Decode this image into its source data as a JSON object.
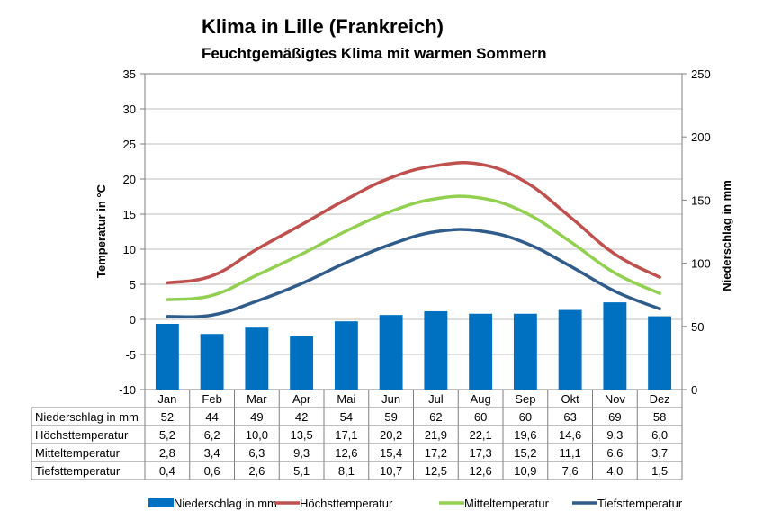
{
  "title": "Klima in Lille (Frankreich)",
  "subtitle": "Feuchtgemäßigtes Klima mit warmen Sommern",
  "chart_data": {
    "type": "bar",
    "categories": [
      "Jan",
      "Feb",
      "Mar",
      "Apr",
      "Mai",
      "Jun",
      "Jul",
      "Aug",
      "Sep",
      "Okt",
      "Nov",
      "Dez"
    ],
    "ylabel_left": "Temperatur in °C",
    "ylabel_right": "Niederschlag in mm",
    "ylim_left": [
      -10,
      35
    ],
    "yticks_left": [
      35,
      30,
      25,
      20,
      15,
      10,
      5,
      0,
      -5,
      -10
    ],
    "ylim_right": [
      0,
      250
    ],
    "yticks_right": [
      250,
      200,
      150,
      100,
      50,
      0
    ],
    "grid": true,
    "legend_position": "bottom",
    "series": [
      {
        "name": "Niederschlag in mm",
        "type": "bar",
        "axis": "right",
        "color": "#0070c0",
        "values": [
          52,
          44,
          49,
          42,
          54,
          59,
          62,
          60,
          60,
          63,
          69,
          58
        ],
        "labels": [
          "52",
          "44",
          "49",
          "42",
          "54",
          "59",
          "62",
          "60",
          "60",
          "63",
          "69",
          "58"
        ]
      },
      {
        "name": "Höchsttemperatur",
        "type": "line",
        "axis": "left",
        "color": "#c0504d",
        "values": [
          5.2,
          6.2,
          10.0,
          13.5,
          17.1,
          20.2,
          21.9,
          22.1,
          19.6,
          14.6,
          9.3,
          6.0
        ],
        "labels": [
          "5,2",
          "6,2",
          "10,0",
          "13,5",
          "17,1",
          "20,2",
          "21,9",
          "22,1",
          "19,6",
          "14,6",
          "9,3",
          "6,0"
        ]
      },
      {
        "name": "Mitteltemperatur",
        "type": "line",
        "axis": "left",
        "color": "#92d050",
        "values": [
          2.8,
          3.4,
          6.3,
          9.3,
          12.6,
          15.4,
          17.2,
          17.3,
          15.2,
          11.1,
          6.6,
          3.7
        ],
        "labels": [
          "2,8",
          "3,4",
          "6,3",
          "9,3",
          "12,6",
          "15,4",
          "17,2",
          "17,3",
          "15,2",
          "11,1",
          "6,6",
          "3,7"
        ]
      },
      {
        "name": "Tiefsttemperatur",
        "type": "line",
        "axis": "left",
        "color": "#305c8c",
        "values": [
          0.4,
          0.6,
          2.6,
          5.1,
          8.1,
          10.7,
          12.5,
          12.6,
          10.9,
          7.6,
          4.0,
          1.5
        ],
        "labels": [
          "0,4",
          "0,6",
          "2,6",
          "5,1",
          "8,1",
          "10,7",
          "12,5",
          "12,6",
          "10,9",
          "7,6",
          "4,0",
          "1,5"
        ]
      }
    ]
  }
}
